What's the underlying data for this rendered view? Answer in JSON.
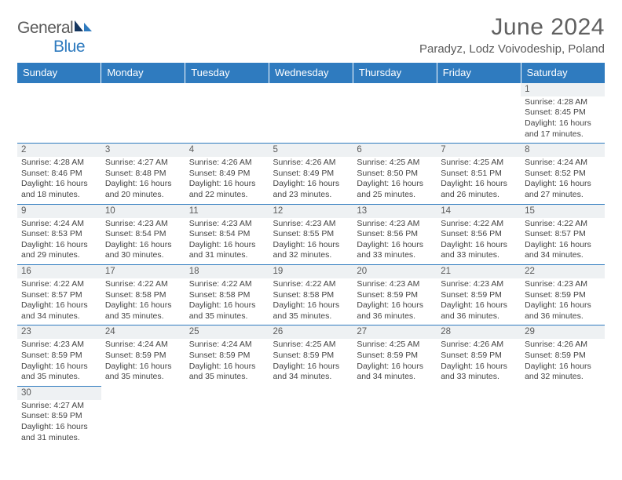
{
  "brand": {
    "name_a": "General",
    "name_b": "Blue"
  },
  "title": "June 2024",
  "location": "Paradyz, Lodz Voivodeship, Poland",
  "colors": {
    "header_bg": "#2f7bbf",
    "header_text": "#ffffff",
    "daynum_bg": "#eef1f3",
    "border": "#2f7bbf",
    "body_text": "#444444",
    "title_text": "#606060"
  },
  "weekdays": [
    "Sunday",
    "Monday",
    "Tuesday",
    "Wednesday",
    "Thursday",
    "Friday",
    "Saturday"
  ],
  "weeks": [
    [
      null,
      null,
      null,
      null,
      null,
      null,
      {
        "n": "1",
        "sr": "4:28 AM",
        "ss": "8:45 PM",
        "dl": "16 hours and 17 minutes."
      }
    ],
    [
      {
        "n": "2",
        "sr": "4:28 AM",
        "ss": "8:46 PM",
        "dl": "16 hours and 18 minutes."
      },
      {
        "n": "3",
        "sr": "4:27 AM",
        "ss": "8:48 PM",
        "dl": "16 hours and 20 minutes."
      },
      {
        "n": "4",
        "sr": "4:26 AM",
        "ss": "8:49 PM",
        "dl": "16 hours and 22 minutes."
      },
      {
        "n": "5",
        "sr": "4:26 AM",
        "ss": "8:49 PM",
        "dl": "16 hours and 23 minutes."
      },
      {
        "n": "6",
        "sr": "4:25 AM",
        "ss": "8:50 PM",
        "dl": "16 hours and 25 minutes."
      },
      {
        "n": "7",
        "sr": "4:25 AM",
        "ss": "8:51 PM",
        "dl": "16 hours and 26 minutes."
      },
      {
        "n": "8",
        "sr": "4:24 AM",
        "ss": "8:52 PM",
        "dl": "16 hours and 27 minutes."
      }
    ],
    [
      {
        "n": "9",
        "sr": "4:24 AM",
        "ss": "8:53 PM",
        "dl": "16 hours and 29 minutes."
      },
      {
        "n": "10",
        "sr": "4:23 AM",
        "ss": "8:54 PM",
        "dl": "16 hours and 30 minutes."
      },
      {
        "n": "11",
        "sr": "4:23 AM",
        "ss": "8:54 PM",
        "dl": "16 hours and 31 minutes."
      },
      {
        "n": "12",
        "sr": "4:23 AM",
        "ss": "8:55 PM",
        "dl": "16 hours and 32 minutes."
      },
      {
        "n": "13",
        "sr": "4:23 AM",
        "ss": "8:56 PM",
        "dl": "16 hours and 33 minutes."
      },
      {
        "n": "14",
        "sr": "4:22 AM",
        "ss": "8:56 PM",
        "dl": "16 hours and 33 minutes."
      },
      {
        "n": "15",
        "sr": "4:22 AM",
        "ss": "8:57 PM",
        "dl": "16 hours and 34 minutes."
      }
    ],
    [
      {
        "n": "16",
        "sr": "4:22 AM",
        "ss": "8:57 PM",
        "dl": "16 hours and 34 minutes."
      },
      {
        "n": "17",
        "sr": "4:22 AM",
        "ss": "8:58 PM",
        "dl": "16 hours and 35 minutes."
      },
      {
        "n": "18",
        "sr": "4:22 AM",
        "ss": "8:58 PM",
        "dl": "16 hours and 35 minutes."
      },
      {
        "n": "19",
        "sr": "4:22 AM",
        "ss": "8:58 PM",
        "dl": "16 hours and 35 minutes."
      },
      {
        "n": "20",
        "sr": "4:23 AM",
        "ss": "8:59 PM",
        "dl": "16 hours and 36 minutes."
      },
      {
        "n": "21",
        "sr": "4:23 AM",
        "ss": "8:59 PM",
        "dl": "16 hours and 36 minutes."
      },
      {
        "n": "22",
        "sr": "4:23 AM",
        "ss": "8:59 PM",
        "dl": "16 hours and 36 minutes."
      }
    ],
    [
      {
        "n": "23",
        "sr": "4:23 AM",
        "ss": "8:59 PM",
        "dl": "16 hours and 35 minutes."
      },
      {
        "n": "24",
        "sr": "4:24 AM",
        "ss": "8:59 PM",
        "dl": "16 hours and 35 minutes."
      },
      {
        "n": "25",
        "sr": "4:24 AM",
        "ss": "8:59 PM",
        "dl": "16 hours and 35 minutes."
      },
      {
        "n": "26",
        "sr": "4:25 AM",
        "ss": "8:59 PM",
        "dl": "16 hours and 34 minutes."
      },
      {
        "n": "27",
        "sr": "4:25 AM",
        "ss": "8:59 PM",
        "dl": "16 hours and 34 minutes."
      },
      {
        "n": "28",
        "sr": "4:26 AM",
        "ss": "8:59 PM",
        "dl": "16 hours and 33 minutes."
      },
      {
        "n": "29",
        "sr": "4:26 AM",
        "ss": "8:59 PM",
        "dl": "16 hours and 32 minutes."
      }
    ],
    [
      {
        "n": "30",
        "sr": "4:27 AM",
        "ss": "8:59 PM",
        "dl": "16 hours and 31 minutes."
      },
      null,
      null,
      null,
      null,
      null,
      null
    ]
  ],
  "labels": {
    "sunrise": "Sunrise:",
    "sunset": "Sunset:",
    "daylight": "Daylight:"
  }
}
